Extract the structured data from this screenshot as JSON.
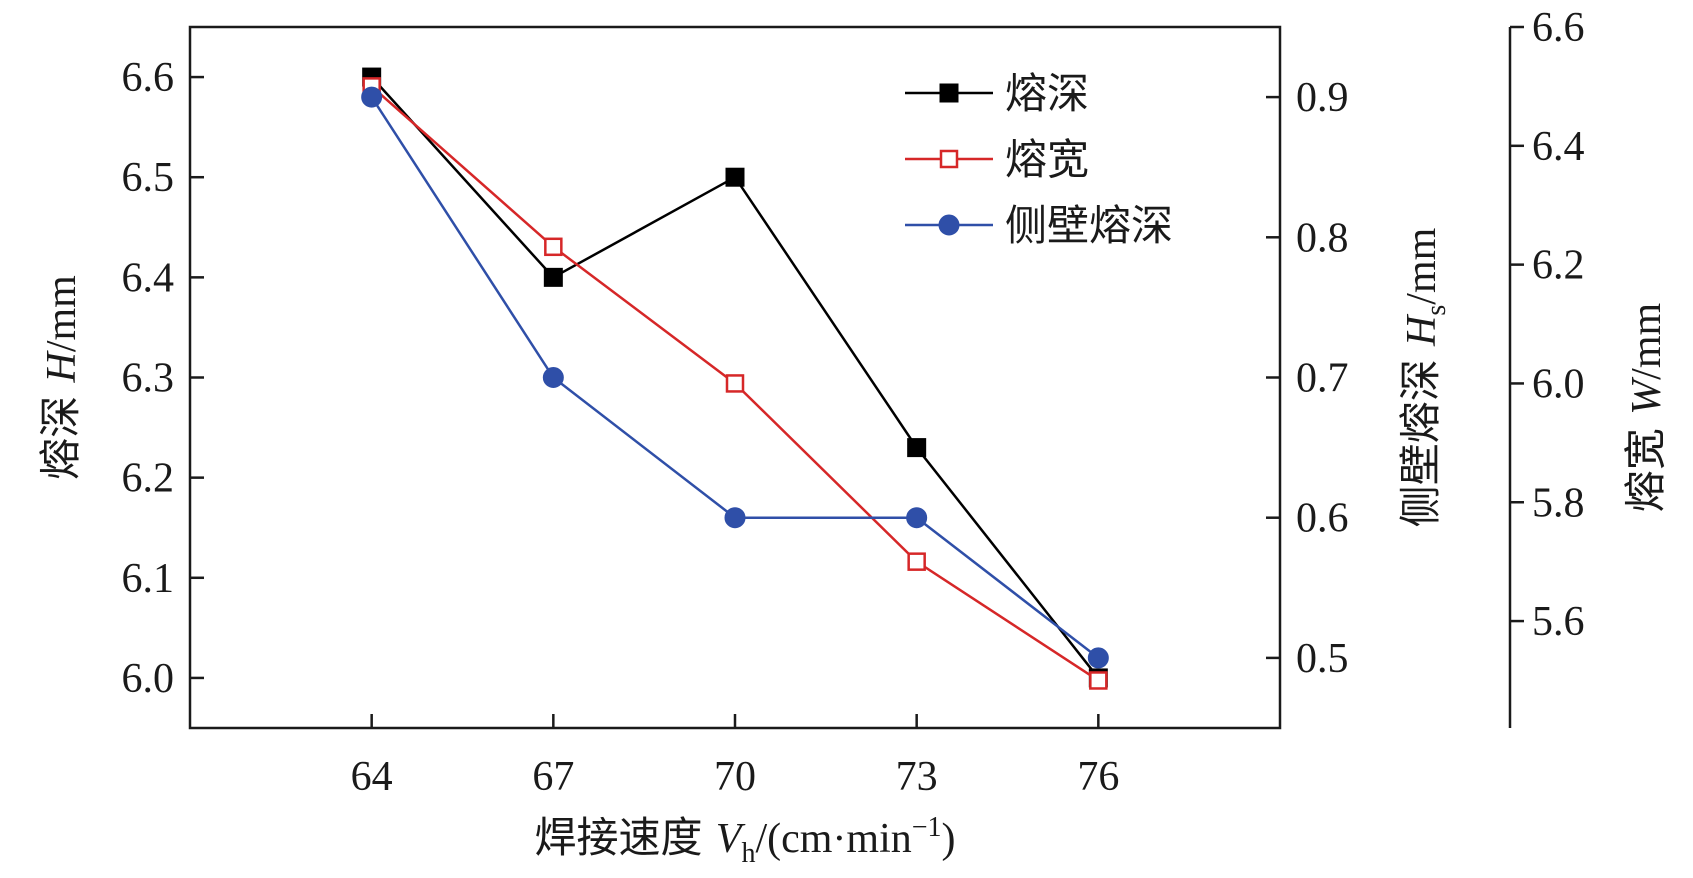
{
  "chart_data": {
    "type": "line",
    "x": [
      64,
      67,
      70,
      73,
      76
    ],
    "xticks": [
      "64",
      "67",
      "70",
      "73",
      "76"
    ],
    "xlim": [
      61,
      79
    ],
    "xlabel": {
      "cn": "焊接速度 ",
      "var": "V",
      "sub": "h",
      "unit": "/(cm·min",
      "sup": "−1",
      "close": ")"
    },
    "axes": {
      "left": {
        "ylim": [
          5.95,
          6.65
        ],
        "ticks": [
          "6.0",
          "6.1",
          "6.2",
          "6.3",
          "6.4",
          "6.5",
          "6.6"
        ],
        "tick_values": [
          6.0,
          6.1,
          6.2,
          6.3,
          6.4,
          6.5,
          6.6
        ],
        "label": {
          "cn": "熔深 ",
          "var": "H",
          "sub": "",
          "unit": "/mm"
        }
      },
      "right1": {
        "ylim": [
          0.45,
          0.95
        ],
        "ticks": [
          "0.5",
          "0.6",
          "0.7",
          "0.8",
          "0.9"
        ],
        "tick_values": [
          0.5,
          0.6,
          0.7,
          0.8,
          0.9
        ],
        "label": {
          "cn": "侧壁熔深 ",
          "var": "H",
          "sub": "s",
          "unit": "/mm"
        }
      },
      "right2": {
        "ylim": [
          5.42,
          6.6
        ],
        "ticks": [
          "5.6",
          "5.8",
          "6.0",
          "6.2",
          "6.4",
          "6.6"
        ],
        "tick_values": [
          5.6,
          5.8,
          6.0,
          6.2,
          6.4,
          6.6
        ],
        "label": {
          "cn": "熔宽 ",
          "var": "W",
          "sub": "",
          "unit": "/mm"
        }
      }
    },
    "series": [
      {
        "name": "熔深",
        "axis": "left",
        "values": [
          6.6,
          6.4,
          6.5,
          6.23,
          6.0
        ],
        "color": "#000000",
        "marker": "filled-square"
      },
      {
        "name": "熔宽",
        "axis": "right2",
        "values": [
          6.5,
          6.23,
          6.0,
          5.7,
          5.5
        ],
        "color": "#d62728",
        "marker": "open-square"
      },
      {
        "name": "侧壁熔深",
        "axis": "right1",
        "values": [
          0.9,
          0.7,
          0.6,
          0.6,
          0.5
        ],
        "color": "#2f4fa8",
        "marker": "filled-circle"
      }
    ],
    "legend": {
      "placement": "top-right",
      "entries": [
        "熔深",
        "熔宽",
        "侧壁熔深"
      ]
    },
    "grid": false
  }
}
